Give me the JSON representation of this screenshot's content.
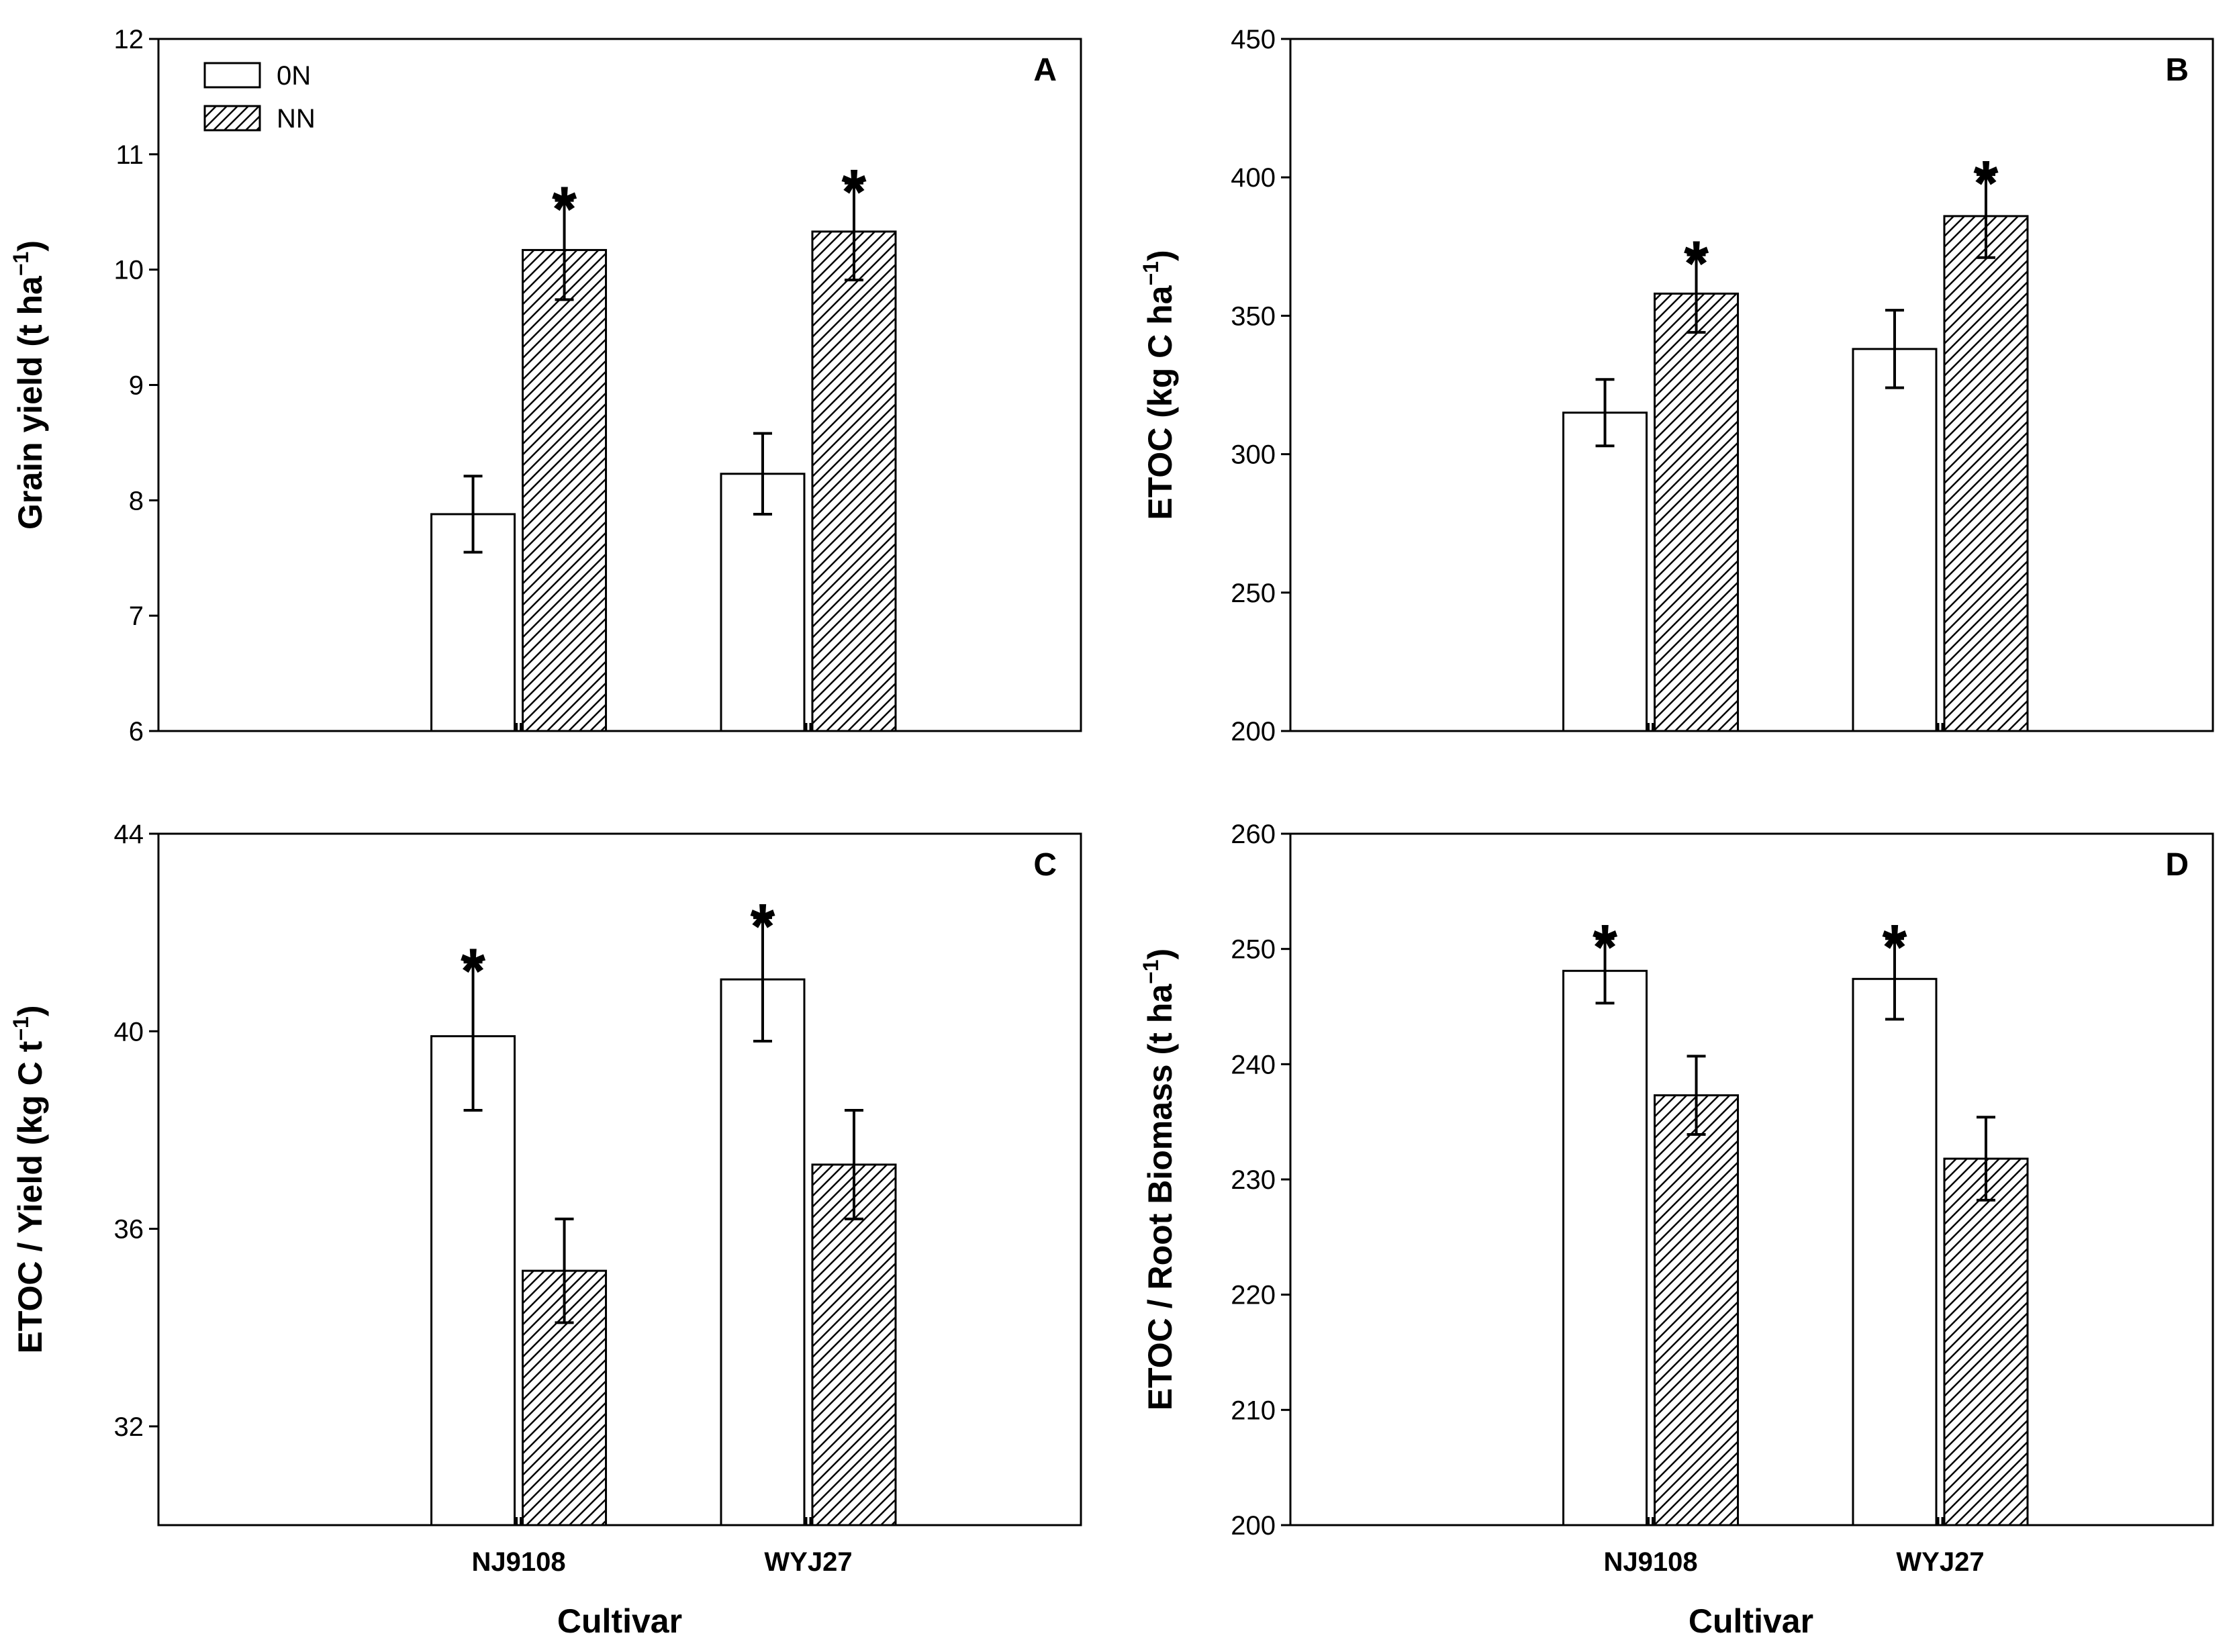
{
  "colors": {
    "background": "#ffffff",
    "ink": "#000000",
    "on_fill": "#ffffff"
  },
  "legend": {
    "entries": [
      "0N",
      "NN"
    ]
  },
  "xlabel": "Cultivar",
  "categories": [
    "NJ9108",
    "WYJ27"
  ],
  "chart_data": [
    {
      "type": "bar",
      "panel": "A",
      "ylabel_main": "Grain yield (t ha",
      "ylabel_sup": "−1",
      "ylabel_tail": ")",
      "ylim": [
        6,
        12
      ],
      "yticks": [
        6,
        7,
        8,
        9,
        10,
        11,
        12
      ],
      "categories": [
        "NJ9108",
        "WYJ27"
      ],
      "series": [
        {
          "name": "0N",
          "values": [
            7.88,
            8.23
          ],
          "errors": [
            0.33,
            0.35
          ]
        },
        {
          "name": "NN",
          "values": [
            10.17,
            10.33
          ],
          "errors": [
            0.43,
            0.42
          ]
        }
      ],
      "significance": [
        {
          "category": "NJ9108",
          "series": "NN",
          "mark": "*"
        },
        {
          "category": "WYJ27",
          "series": "NN",
          "mark": "*"
        }
      ]
    },
    {
      "type": "bar",
      "panel": "B",
      "ylabel_main": "ETOC (kg C ha",
      "ylabel_sup": "−1",
      "ylabel_tail": ")",
      "ylim": [
        200,
        450
      ],
      "yticks": [
        200,
        250,
        300,
        350,
        400,
        450
      ],
      "categories": [
        "NJ9108",
        "WYJ27"
      ],
      "series": [
        {
          "name": "0N",
          "values": [
            315,
            338
          ],
          "errors": [
            12,
            14
          ]
        },
        {
          "name": "NN",
          "values": [
            358,
            386
          ],
          "errors": [
            14,
            15
          ]
        }
      ],
      "significance": [
        {
          "category": "NJ9108",
          "series": "NN",
          "mark": "*"
        },
        {
          "category": "WYJ27",
          "series": "NN",
          "mark": "*"
        }
      ]
    },
    {
      "type": "bar",
      "panel": "C",
      "ylabel_main": "ETOC / Yield (kg C t",
      "ylabel_sup": "−1",
      "ylabel_tail": ")",
      "ylim": [
        30,
        44
      ],
      "yticks": [
        32,
        36,
        40,
        44
      ],
      "categories": [
        "NJ9108",
        "WYJ27"
      ],
      "series": [
        {
          "name": "0N",
          "values": [
            39.9,
            41.05
          ],
          "errors": [
            1.5,
            1.25
          ]
        },
        {
          "name": "NN",
          "values": [
            35.15,
            37.3
          ],
          "errors": [
            1.05,
            1.1
          ]
        }
      ],
      "significance": [
        {
          "category": "NJ9108",
          "series": "0N",
          "mark": "*"
        },
        {
          "category": "WYJ27",
          "series": "0N",
          "mark": "*"
        }
      ]
    },
    {
      "type": "bar",
      "panel": "D",
      "ylabel_main": "ETOC / Root Biomass (t ha",
      "ylabel_sup": "−1",
      "ylabel_tail": ")",
      "ylim": [
        200,
        260
      ],
      "yticks": [
        200,
        210,
        220,
        230,
        240,
        250,
        260
      ],
      "categories": [
        "NJ9108",
        "WYJ27"
      ],
      "series": [
        {
          "name": "0N",
          "values": [
            248.1,
            247.4
          ],
          "errors": [
            2.8,
            3.5
          ]
        },
        {
          "name": "NN",
          "values": [
            237.3,
            231.8
          ],
          "errors": [
            3.4,
            3.6
          ]
        }
      ],
      "significance": [
        {
          "category": "NJ9108",
          "series": "0N",
          "mark": "*"
        },
        {
          "category": "WYJ27",
          "series": "0N",
          "mark": "*"
        }
      ]
    }
  ]
}
